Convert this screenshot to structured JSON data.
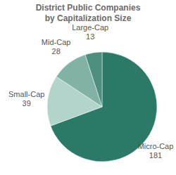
{
  "chart_data": {
    "type": "pie",
    "title": "District Public Companies\nby Capitalization Size",
    "categories": [
      "Micro-Cap",
      "Small-Cap",
      "Mid-Cap",
      "Large-Cap"
    ],
    "values": [
      181,
      39,
      28,
      13
    ],
    "colors": [
      "#2b7a68",
      "#b3d4ca",
      "#80b3a6",
      "#4f8f80"
    ],
    "data_labels": true
  }
}
